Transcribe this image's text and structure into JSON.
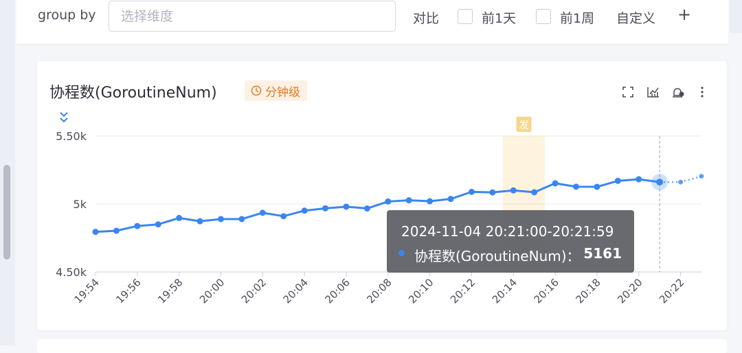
{
  "filter": {
    "groupby_label": "group by",
    "groupby_placeholder": "选择维度",
    "compare_label": "对比",
    "options": [
      {
        "label": "前1天",
        "checked": false
      },
      {
        "label": "前1周",
        "checked": false
      }
    ],
    "custom_label": "自定义",
    "add_symbol": "+"
  },
  "panel": {
    "title": "协程数(GoroutineNum)",
    "granularity": "分钟级",
    "toolbar_icons": [
      "fullscreen-icon",
      "chart-type-icon",
      "alarm-icon",
      "more-vertical-icon"
    ]
  },
  "chart_data": {
    "type": "line",
    "title": "协程数(GoroutineNum)",
    "y_ticks": [
      "5.50k",
      "5k",
      "4.50k"
    ],
    "ylim": [
      4500,
      5500
    ],
    "x_tick_labels": [
      "19:54",
      "19:56",
      "19:58",
      "20:00",
      "20:02",
      "20:04",
      "20:06",
      "20:08",
      "20:10",
      "20:12",
      "20:14",
      "20:16",
      "20:18",
      "20:20",
      "20:22"
    ],
    "x": [
      "19:54",
      "19:55",
      "19:56",
      "19:57",
      "19:58",
      "19:59",
      "20:00",
      "20:01",
      "20:02",
      "20:03",
      "20:04",
      "20:05",
      "20:06",
      "20:07",
      "20:08",
      "20:09",
      "20:10",
      "20:11",
      "20:12",
      "20:13",
      "20:14",
      "20:15",
      "20:16",
      "20:17",
      "20:18",
      "20:19",
      "20:20",
      "20:21",
      "20:22",
      "20:23"
    ],
    "series": [
      {
        "name": "协程数(GoroutineNum)",
        "color": "#3a86f0",
        "values": [
          4795,
          4803,
          4838,
          4850,
          4897,
          4873,
          4889,
          4889,
          4935,
          4910,
          4951,
          4968,
          4980,
          4967,
          5018,
          5027,
          5020,
          5037,
          5089,
          5085,
          5100,
          5086,
          5152,
          5127,
          5126,
          5170,
          5182,
          5161,
          5161,
          5204
        ],
        "projected_from_index": 27
      }
    ],
    "grid": true,
    "marker_label": "发",
    "marker_span": [
      "20:13",
      "20:15"
    ],
    "crosshair_x": "20:21",
    "highlight_color": "#f7d58a",
    "tooltip": {
      "time": "2024-11-04 20:21:00-20:21:59",
      "series": "协程数(GoroutineNum)：",
      "value": "5161"
    }
  }
}
